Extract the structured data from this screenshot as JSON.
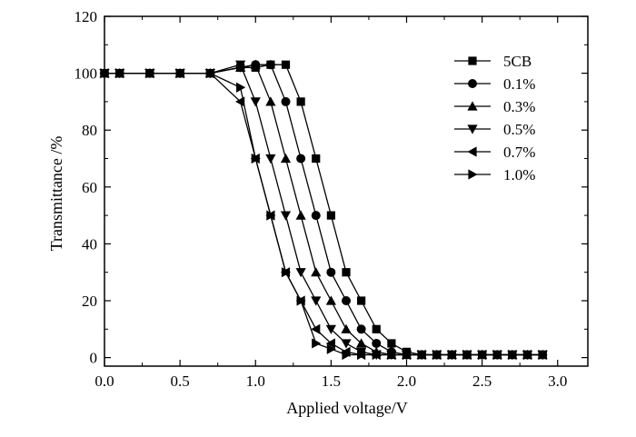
{
  "chart_data": {
    "type": "line",
    "title": "",
    "xlabel": "Applied voltage/V",
    "ylabel": "Transmittance /%",
    "xlim": [
      0.0,
      3.2
    ],
    "ylim": [
      -3,
      120
    ],
    "xticks": [
      "0.0",
      "0.5",
      "1.0",
      "1.5",
      "2.0",
      "2.5",
      "3.0"
    ],
    "yticks": [
      "0",
      "20",
      "40",
      "60",
      "80",
      "100",
      "120"
    ],
    "grid": false,
    "legend_position": "top-right",
    "series": [
      {
        "name": "5CB",
        "marker": "square",
        "x": [
          0,
          0.1,
          0.3,
          0.5,
          0.7,
          0.9,
          1.0,
          1.1,
          1.2,
          1.3,
          1.4,
          1.5,
          1.6,
          1.7,
          1.8,
          1.9,
          2.0,
          2.1,
          2.2,
          2.3,
          2.4,
          2.5,
          2.6,
          2.7,
          2.8,
          2.9
        ],
        "y": [
          100,
          100,
          100,
          100,
          100,
          102,
          102,
          103,
          103,
          90,
          70,
          50,
          30,
          20,
          10,
          5,
          2,
          1,
          1,
          1,
          1,
          1,
          1,
          1,
          1,
          1
        ]
      },
      {
        "name": "0.1%",
        "marker": "circle",
        "x": [
          0,
          0.1,
          0.3,
          0.5,
          0.7,
          0.9,
          1.0,
          1.1,
          1.2,
          1.3,
          1.4,
          1.5,
          1.6,
          1.7,
          1.8,
          1.9,
          2.0,
          2.1,
          2.2,
          2.3,
          2.4,
          2.5,
          2.6,
          2.7,
          2.8,
          2.9
        ],
        "y": [
          100,
          100,
          100,
          100,
          100,
          102,
          103,
          103,
          90,
          70,
          50,
          30,
          20,
          10,
          5,
          2,
          1,
          1,
          1,
          1,
          1,
          1,
          1,
          1,
          1,
          1
        ]
      },
      {
        "name": "0.3%",
        "marker": "triangle-up",
        "x": [
          0,
          0.1,
          0.3,
          0.5,
          0.7,
          0.9,
          1.0,
          1.1,
          1.2,
          1.3,
          1.4,
          1.5,
          1.6,
          1.7,
          1.8,
          1.9,
          2.0,
          2.1,
          2.2,
          2.3,
          2.4,
          2.5,
          2.6,
          2.7,
          2.8,
          2.9
        ],
        "y": [
          100,
          100,
          100,
          100,
          100,
          102,
          103,
          90,
          70,
          50,
          30,
          20,
          10,
          5,
          2,
          1,
          1,
          1,
          1,
          1,
          1,
          1,
          1,
          1,
          1,
          1
        ]
      },
      {
        "name": "0.5%",
        "marker": "triangle-down",
        "x": [
          0,
          0.1,
          0.3,
          0.5,
          0.7,
          0.9,
          1.0,
          1.1,
          1.2,
          1.3,
          1.4,
          1.5,
          1.6,
          1.7,
          1.8,
          1.9,
          2.0,
          2.1,
          2.2,
          2.3,
          2.4,
          2.5,
          2.6,
          2.7,
          2.8,
          2.9
        ],
        "y": [
          100,
          100,
          100,
          100,
          100,
          103,
          90,
          70,
          50,
          30,
          20,
          10,
          5,
          2,
          1,
          1,
          1,
          1,
          1,
          1,
          1,
          1,
          1,
          1,
          1,
          1
        ]
      },
      {
        "name": "0.7%",
        "marker": "triangle-left",
        "x": [
          0,
          0.1,
          0.3,
          0.5,
          0.7,
          0.9,
          1.0,
          1.1,
          1.2,
          1.3,
          1.4,
          1.5,
          1.6,
          1.7,
          1.8,
          1.9,
          2.0,
          2.1,
          2.2,
          2.3,
          2.4,
          2.5,
          2.6,
          2.7,
          2.8,
          2.9
        ],
        "y": [
          100,
          100,
          100,
          100,
          100,
          90,
          70,
          50,
          30,
          20,
          10,
          5,
          2,
          1,
          1,
          1,
          1,
          1,
          1,
          1,
          1,
          1,
          1,
          1,
          1,
          1
        ]
      },
      {
        "name": "1.0%",
        "marker": "triangle-right",
        "x": [
          0,
          0.1,
          0.3,
          0.5,
          0.7,
          0.9,
          1.0,
          1.1,
          1.2,
          1.3,
          1.4,
          1.5,
          1.6,
          1.7,
          1.8,
          1.9,
          2.0,
          2.1,
          2.2,
          2.3,
          2.4,
          2.5,
          2.6,
          2.7,
          2.8,
          2.9
        ],
        "y": [
          100,
          100,
          100,
          100,
          100,
          95,
          70,
          50,
          30,
          20,
          5,
          3,
          1,
          1,
          1,
          1,
          1,
          1,
          1,
          1,
          1,
          1,
          1,
          1,
          1,
          1
        ]
      }
    ]
  }
}
